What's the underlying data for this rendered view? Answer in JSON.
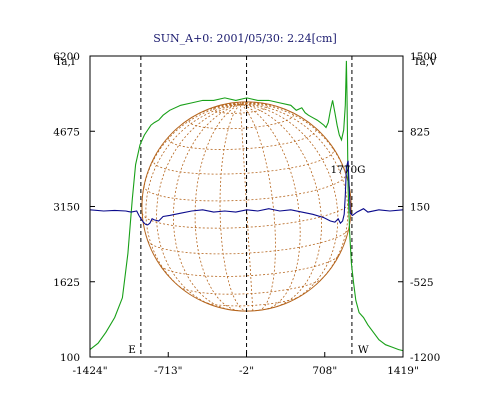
{
  "chart_data": {
    "type": "line",
    "title": "SUN_A+0: 2001/05/30: 2.24[cm]",
    "left_axis_label": "Ta,I",
    "right_axis_label": "Ta,V",
    "left_ticks": [
      "6200",
      "4675",
      "3150",
      "1625",
      "100"
    ],
    "right_ticks": [
      "1500",
      "825",
      "150",
      "-525",
      "-1200"
    ],
    "x_ticks": [
      "-1424\"",
      "-713\"",
      "-2\"",
      "708\"",
      "1419\""
    ],
    "xlim": [
      -1424,
      1419
    ],
    "ylim_left": [
      100,
      6200
    ],
    "ylim_right": [
      -1200,
      1500
    ],
    "limb_labels": [
      "E",
      "W"
    ],
    "annotation": "1770G",
    "colors": {
      "intensity": "#18a018",
      "polarization": "#0a0a8c",
      "disk": "#b5651d",
      "axes": "#000000",
      "title": "#1a1a6e"
    },
    "disk_center": [
      -2,
      3150
    ],
    "disk_radius_arcsec": 950,
    "vertical_markers": [
      -962,
      -2,
      955
    ],
    "series": [
      {
        "axis": "left",
        "x": [
          -1424,
          -1350,
          -1280,
          -1200,
          -1130,
          -1080,
          -1040,
          -1010,
          -990,
          -970,
          -950,
          -930,
          -900,
          -870,
          -840,
          -800,
          -760,
          -700,
          -600,
          -500,
          -400,
          -300,
          -200,
          -100,
          0,
          100,
          200,
          300,
          400,
          450,
          500,
          530,
          560,
          600,
          640,
          670,
          700,
          720,
          740,
          760,
          780,
          800,
          820,
          840,
          860,
          880,
          895,
          905,
          910,
          920,
          935,
          950,
          970,
          990,
          1020,
          1060,
          1100,
          1150,
          1200,
          1260,
          1320,
          1380,
          1419
        ],
        "y": [
          250,
          380,
          600,
          900,
          1300,
          2200,
          3300,
          4000,
          4200,
          4400,
          4500,
          4600,
          4700,
          4800,
          4850,
          4900,
          5000,
          5100,
          5200,
          5250,
          5300,
          5300,
          5350,
          5300,
          5350,
          5300,
          5300,
          5250,
          5200,
          5100,
          5150,
          5050,
          5000,
          4950,
          4900,
          4850,
          4800,
          4750,
          4850,
          5100,
          5300,
          5050,
          4800,
          4600,
          4500,
          4700,
          5200,
          6100,
          5400,
          3500,
          2600,
          2000,
          1600,
          1250,
          1000,
          900,
          750,
          600,
          450,
          350,
          300,
          250,
          230
        ]
      },
      {
        "axis": "right",
        "x": [
          -1424,
          -1300,
          -1200,
          -1100,
          -1050,
          -1000,
          -980,
          -960,
          -940,
          -920,
          -900,
          -880,
          -860,
          -840,
          -800,
          -760,
          -700,
          -600,
          -500,
          -400,
          -300,
          -200,
          -100,
          0,
          100,
          200,
          300,
          400,
          500,
          600,
          700,
          760,
          800,
          830,
          850,
          870,
          885,
          895,
          905,
          920,
          940,
          960,
          1000,
          1060,
          1100,
          1200,
          1300,
          1419
        ],
        "y": [
          120,
          110,
          115,
          110,
          100,
          110,
          70,
          40,
          10,
          -10,
          -15,
          0,
          40,
          30,
          20,
          60,
          70,
          90,
          110,
          120,
          100,
          110,
          100,
          120,
          110,
          130,
          110,
          120,
          100,
          80,
          50,
          20,
          10,
          40,
          0,
          20,
          80,
          250,
          500,
          560,
          90,
          70,
          100,
          130,
          100,
          120,
          110,
          120
        ]
      }
    ]
  }
}
